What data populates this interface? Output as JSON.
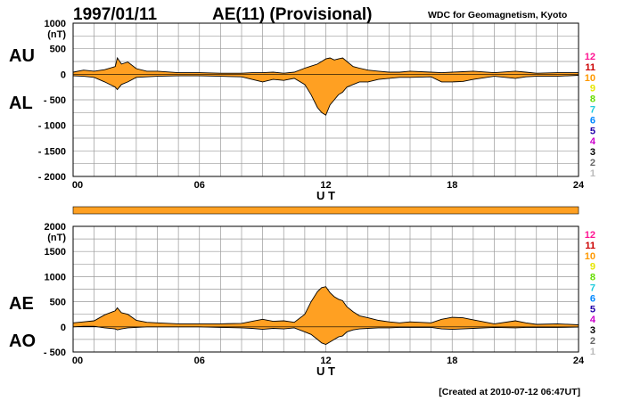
{
  "header": {
    "date": "1997/01/11",
    "title": "AE(11) (Provisional)",
    "source": "WDC for Geomagnetism, Kyoto"
  },
  "footer": {
    "created": "[Created at 2010-07-12 06:47UT]"
  },
  "station_counts": {
    "labels": [
      "12",
      "11",
      "10",
      "9",
      "8",
      "7",
      "6",
      "5",
      "4",
      "3",
      "2",
      "1"
    ],
    "colors": [
      "#ff1493",
      "#cc0000",
      "#ff9900",
      "#e6e600",
      "#66dd00",
      "#22ccdd",
      "#0088ff",
      "#2200aa",
      "#cc00cc",
      "#000000",
      "#666666",
      "#bbbbbb"
    ]
  },
  "colors": {
    "fill": "#ffa022",
    "line": "#000000",
    "grid": "#9a9a9a",
    "quality_bar": "#ffa022"
  },
  "chart_data": [
    {
      "type": "area",
      "name": "AU/AL",
      "series_labels": [
        "AU",
        "AL"
      ],
      "xlabel": "U T",
      "ylabel": "(nT)",
      "xlim": [
        0,
        24
      ],
      "ylim": [
        -2000,
        1000
      ],
      "xticks": [
        "00",
        "06",
        "12",
        "18",
        "24"
      ],
      "yticks": [
        1000,
        500,
        0,
        -500,
        -1000,
        -1500,
        -2000
      ],
      "ytick_labels": [
        "1000",
        "500",
        "0",
        "- 500",
        "- 1000",
        "- 1500",
        "- 2000"
      ],
      "x": [
        0,
        0.5,
        1,
        1.5,
        2,
        2.1,
        2.3,
        2.6,
        3,
        3.5,
        4,
        5,
        6,
        7,
        8,
        8.5,
        9,
        9.5,
        10,
        10.5,
        11,
        11.3,
        11.6,
        11.8,
        12,
        12.2,
        12.4,
        12.6,
        12.8,
        13,
        13.3,
        13.6,
        14,
        14.5,
        15,
        15.5,
        16,
        17,
        17.5,
        18,
        18.5,
        19,
        20,
        21,
        21.5,
        22,
        23,
        24
      ],
      "upper": [
        40,
        80,
        60,
        90,
        150,
        320,
        200,
        240,
        110,
        60,
        60,
        30,
        30,
        20,
        20,
        30,
        30,
        40,
        20,
        40,
        120,
        160,
        200,
        250,
        300,
        320,
        280,
        300,
        320,
        250,
        150,
        120,
        80,
        60,
        40,
        40,
        60,
        40,
        30,
        40,
        50,
        60,
        30,
        60,
        40,
        20,
        30,
        30
      ],
      "lower": [
        -30,
        -40,
        -60,
        -150,
        -250,
        -300,
        -200,
        -150,
        -60,
        -50,
        -40,
        -30,
        -30,
        -40,
        -50,
        -100,
        -150,
        -100,
        -120,
        -80,
        -200,
        -400,
        -650,
        -750,
        -800,
        -600,
        -500,
        -400,
        -350,
        -250,
        -200,
        -150,
        -150,
        -100,
        -80,
        -60,
        -60,
        -50,
        -150,
        -150,
        -140,
        -100,
        -40,
        -80,
        -50,
        -40,
        -40,
        -20
      ]
    },
    {
      "type": "area",
      "name": "AE/AO",
      "series_labels": [
        "AE",
        "AO"
      ],
      "xlabel": "U T",
      "ylabel": "(nT)",
      "xlim": [
        0,
        24
      ],
      "ylim": [
        -500,
        2000
      ],
      "xticks": [
        "00",
        "06",
        "12",
        "18",
        "24"
      ],
      "yticks": [
        2000,
        1500,
        1000,
        500,
        0,
        -500
      ],
      "ytick_labels": [
        "2000",
        "1500",
        "1000",
        "500",
        "0",
        "- 500"
      ],
      "x": [
        0,
        0.5,
        1,
        1.5,
        2,
        2.1,
        2.3,
        2.6,
        3,
        3.5,
        4,
        5,
        6,
        7,
        8,
        8.5,
        9,
        9.5,
        10,
        10.5,
        11,
        11.3,
        11.6,
        11.8,
        12,
        12.2,
        12.4,
        12.6,
        12.8,
        13,
        13.3,
        13.6,
        14,
        14.5,
        15,
        15.5,
        16,
        17,
        17.5,
        18,
        18.5,
        19,
        20,
        21,
        21.5,
        22,
        23,
        24
      ],
      "upper": [
        80,
        100,
        120,
        240,
        320,
        380,
        280,
        250,
        130,
        90,
        80,
        60,
        60,
        60,
        70,
        110,
        150,
        110,
        120,
        90,
        250,
        500,
        700,
        780,
        800,
        680,
        600,
        550,
        520,
        400,
        300,
        220,
        180,
        130,
        100,
        80,
        100,
        80,
        150,
        190,
        180,
        140,
        60,
        120,
        80,
        50,
        60,
        40
      ],
      "lower": [
        0,
        10,
        10,
        -20,
        -40,
        -60,
        -40,
        -20,
        -10,
        0,
        0,
        0,
        0,
        -10,
        -20,
        -30,
        -50,
        -30,
        -40,
        -20,
        -100,
        -150,
        -250,
        -320,
        -350,
        -300,
        -250,
        -200,
        -180,
        -100,
        -60,
        -40,
        -30,
        -20,
        -20,
        -10,
        -10,
        -10,
        -40,
        -50,
        -40,
        -30,
        -10,
        -20,
        -10,
        -10,
        -10,
        -5
      ]
    }
  ]
}
